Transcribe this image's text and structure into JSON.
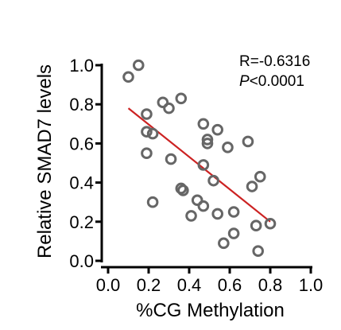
{
  "chart_data": {
    "type": "scatter",
    "xlabel": "%CG Methylation",
    "ylabel": "Relative SMAD7 levels",
    "xlim": [
      0.0,
      1.0
    ],
    "ylim": [
      0.0,
      1.0
    ],
    "xticks": [
      "0.0",
      "0.2",
      "0.4",
      "0.6",
      "0.8",
      "1.0"
    ],
    "yticks": [
      "0.0",
      "0.2",
      "0.4",
      "0.6",
      "0.8",
      "1.0"
    ],
    "annotations": {
      "r_text": "R=-0.6316",
      "p_italic": "P",
      "p_rest": "<0.0001"
    },
    "points": [
      [
        0.1,
        0.94
      ],
      [
        0.15,
        1.0
      ],
      [
        0.19,
        0.75
      ],
      [
        0.19,
        0.66
      ],
      [
        0.22,
        0.65
      ],
      [
        0.19,
        0.55
      ],
      [
        0.22,
        0.3
      ],
      [
        0.27,
        0.81
      ],
      [
        0.3,
        0.78
      ],
      [
        0.36,
        0.83
      ],
      [
        0.31,
        0.52
      ],
      [
        0.36,
        0.37
      ],
      [
        0.37,
        0.36
      ],
      [
        0.41,
        0.23
      ],
      [
        0.44,
        0.31
      ],
      [
        0.47,
        0.28
      ],
      [
        0.47,
        0.49
      ],
      [
        0.47,
        0.7
      ],
      [
        0.49,
        0.62
      ],
      [
        0.49,
        0.6
      ],
      [
        0.52,
        0.41
      ],
      [
        0.54,
        0.67
      ],
      [
        0.54,
        0.24
      ],
      [
        0.59,
        0.58
      ],
      [
        0.62,
        0.25
      ],
      [
        0.62,
        0.14
      ],
      [
        0.57,
        0.09
      ],
      [
        0.69,
        0.61
      ],
      [
        0.71,
        0.38
      ],
      [
        0.75,
        0.43
      ],
      [
        0.73,
        0.18
      ],
      [
        0.74,
        0.05
      ],
      [
        0.8,
        0.19
      ]
    ],
    "fit_line": {
      "x": [
        0.1,
        0.8
      ],
      "y": [
        0.78,
        0.2
      ],
      "color": "#cc2222"
    },
    "marker": {
      "shape": "open-circle",
      "color": "#666666"
    },
    "grid": false,
    "legend": "none"
  }
}
